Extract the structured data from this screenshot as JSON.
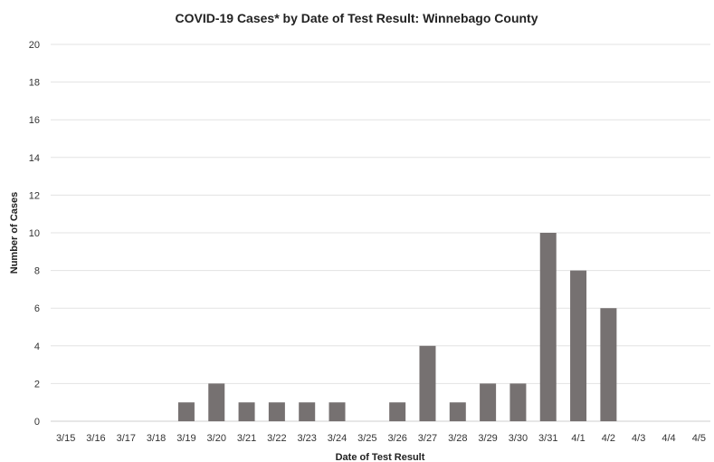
{
  "chart_data": {
    "type": "bar",
    "title": "COVID-19 Cases* by Date of Test Result: Winnebago County",
    "xlabel": "Date of Test Result",
    "ylabel": "Number of Cases",
    "categories": [
      "3/15",
      "3/16",
      "3/17",
      "3/18",
      "3/19",
      "3/20",
      "3/21",
      "3/22",
      "3/23",
      "3/24",
      "3/25",
      "3/26",
      "3/27",
      "3/28",
      "3/29",
      "3/30",
      "3/31",
      "4/1",
      "4/2",
      "4/3",
      "4/4",
      "4/5"
    ],
    "values": [
      0,
      0,
      0,
      0,
      1,
      2,
      1,
      1,
      1,
      1,
      0,
      1,
      4,
      1,
      2,
      2,
      10,
      8,
      6,
      0,
      0,
      0
    ],
    "ylim": [
      0,
      20
    ],
    "yticks": [
      "0",
      "2",
      "4",
      "6",
      "8",
      "10",
      "12",
      "14",
      "16",
      "18",
      "20"
    ],
    "grid": true,
    "bar_color": "#767171"
  }
}
